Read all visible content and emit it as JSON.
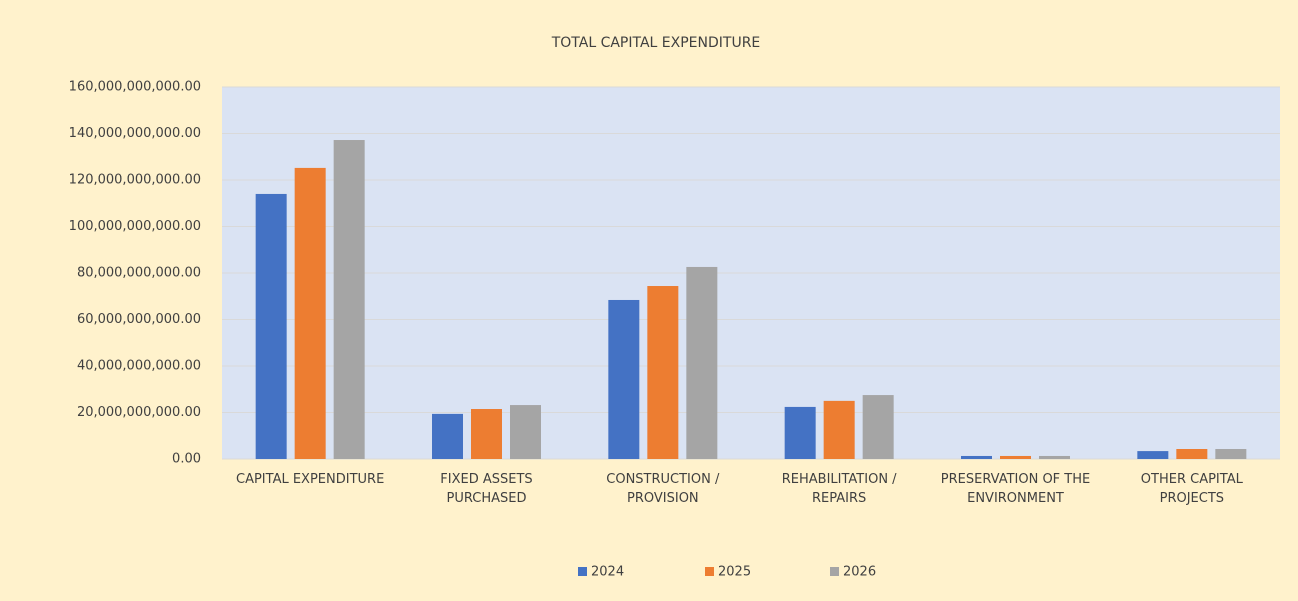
{
  "chart_data": {
    "type": "bar",
    "title": "TOTAL CAPITAL EXPENDITURE",
    "categories": [
      "CAPITAL EXPENDITURE",
      "FIXED ASSETS PURCHASED",
      "CONSTRUCTION / PROVISION",
      "REHABILITATION / REPAIRS",
      "PRESERVATION OF THE ENVIRONMENT",
      "OTHER CAPITAL PROJECTS"
    ],
    "series": [
      {
        "name": "2024",
        "color": "#4472c4",
        "values": [
          114000000000,
          19400000000,
          68400000000,
          22400000000,
          1300000000,
          3400000000
        ]
      },
      {
        "name": "2025",
        "color": "#ed7d31",
        "values": [
          125200000000,
          21500000000,
          74400000000,
          25000000000,
          1300000000,
          4300000000
        ]
      },
      {
        "name": "2026",
        "color": "#a5a5a5",
        "values": [
          137200000000,
          23200000000,
          82600000000,
          27500000000,
          1300000000,
          4300000000
        ]
      }
    ],
    "ylim": [
      0,
      160000000000
    ],
    "yticks": [
      {
        "value": 0,
        "label": "0.00"
      },
      {
        "value": 20000000000,
        "label": "20,000,000,000.00"
      },
      {
        "value": 40000000000,
        "label": "40,000,000,000.00"
      },
      {
        "value": 60000000000,
        "label": "60,000,000,000.00"
      },
      {
        "value": 80000000000,
        "label": "80,000,000,000.00"
      },
      {
        "value": 100000000000,
        "label": "100,000,000,000.00"
      },
      {
        "value": 120000000000,
        "label": "120,000,000,000.00"
      },
      {
        "value": 140000000000,
        "label": "140,000,000,000.00"
      },
      {
        "value": 160000000000,
        "label": "160,000,000,000.00"
      }
    ],
    "grid": true,
    "legend": "bottom"
  }
}
